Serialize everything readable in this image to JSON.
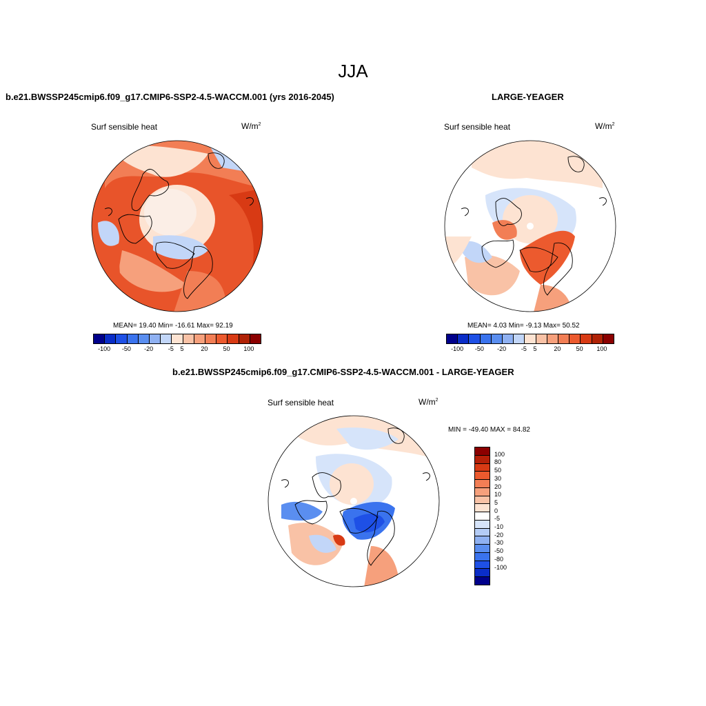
{
  "figure": {
    "season_title": "JJA",
    "colors": {
      "blue_strong": "#00008b",
      "blue_mid": "#1e50e6",
      "blue_light": "#8fb1f2",
      "blue_pale": "#d6e4fa",
      "white": "#ffffff",
      "orange_pale": "#fde3d2",
      "orange_light": "#f7b193",
      "orange_mid": "#f06a3c",
      "red_strong": "#e84a1e",
      "dark_red": "#8b0000",
      "land_outline": "#000000"
    }
  },
  "panels": [
    {
      "id": "test",
      "title": "b.e21.BWSSP245cmip6.f09_g17.CMIP6-SSP2-4.5-WACCM.001 (yrs 2016-2045)",
      "variable": "Surf sensible heat",
      "units_base": "W/m",
      "units_exp": "2",
      "stats": "MEAN=  19.40  Min= -16.61  Max=  92.19",
      "colorbar": {
        "colors": [
          "#00008b",
          "#0a2dc8",
          "#1e50e6",
          "#3a73ee",
          "#5a8ef0",
          "#8fb1f2",
          "#c2d6f8",
          "#fde3d2",
          "#f9c2a6",
          "#f6a07c",
          "#f27e55",
          "#ec5a2e",
          "#d83a14",
          "#b02206",
          "#8b0000"
        ],
        "ticks": [
          "-100",
          "-50",
          "-20",
          "-5",
          "5",
          "20",
          "50",
          "100"
        ]
      }
    },
    {
      "id": "obs",
      "title": "LARGE-YEAGER",
      "variable": "Surf sensible heat",
      "units_base": "W/m",
      "units_exp": "2",
      "stats": "MEAN=   4.03  Min=  -9.13  Max=  50.52",
      "colorbar": {
        "colors": [
          "#00008b",
          "#0a2dc8",
          "#1e50e6",
          "#3a73ee",
          "#5a8ef0",
          "#8fb1f2",
          "#c2d6f8",
          "#fde3d2",
          "#f9c2a6",
          "#f6a07c",
          "#f27e55",
          "#ec5a2e",
          "#d83a14",
          "#b02206",
          "#8b0000"
        ],
        "ticks": [
          "-100",
          "-50",
          "-20",
          "-5",
          "5",
          "20",
          "50",
          "100"
        ]
      }
    },
    {
      "id": "diff",
      "title": "b.e21.BWSSP245cmip6.f09_g17.CMIP6-SSP2-4.5-WACCM.001 - LARGE-YEAGER",
      "variable": "Surf sensible heat",
      "units_base": "W/m",
      "units_exp": "2",
      "stats": "MIN = -49.40 MAX =  84.82",
      "colorbar": {
        "colors_top_to_bottom": [
          "#8b0000",
          "#b52008",
          "#d83a14",
          "#ec5a2e",
          "#f27e55",
          "#f6a07c",
          "#f9c2a6",
          "#fde3d2",
          "#ffffff",
          "#d6e4fa",
          "#b4ccf6",
          "#8fb1f2",
          "#5a8ef0",
          "#3a73ee",
          "#1e50e6",
          "#0a2dc8",
          "#00008b"
        ],
        "labels_top_to_bottom": [
          "100",
          "80",
          "50",
          "30",
          "20",
          "10",
          "5",
          "0",
          "-5",
          "-10",
          "-20",
          "-30",
          "-50",
          "-80",
          "-100"
        ]
      }
    }
  ]
}
